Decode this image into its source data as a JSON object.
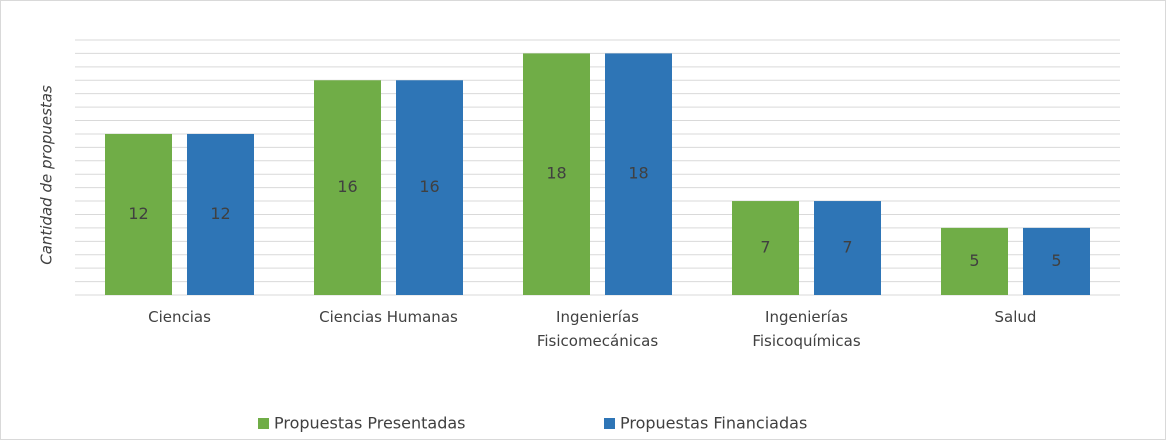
{
  "chart_data": {
    "type": "bar",
    "y_label": "Cantidad de propuestas",
    "categories": [
      "Ciencias",
      "Ciencias Humanas",
      "Ingenierías\nFisicomecánicas",
      "Ingenierías\nFisicoquímicas",
      "Salud"
    ],
    "series": [
      {
        "name": "Propuestas Presentadas",
        "color": "#70ad47",
        "values": [
          12,
          16,
          18,
          7,
          5
        ]
      },
      {
        "name": "Propuestas Financiadas",
        "color": "#2e75b6",
        "values": [
          12,
          16,
          18,
          7,
          5
        ]
      }
    ],
    "ylim": [
      0,
      19
    ],
    "yticks": [
      0,
      1,
      2,
      3,
      4,
      5,
      6,
      7,
      8,
      9,
      10,
      11,
      12,
      13,
      14,
      15,
      16,
      17,
      18,
      19
    ],
    "grid": true,
    "legend": "bottom"
  }
}
